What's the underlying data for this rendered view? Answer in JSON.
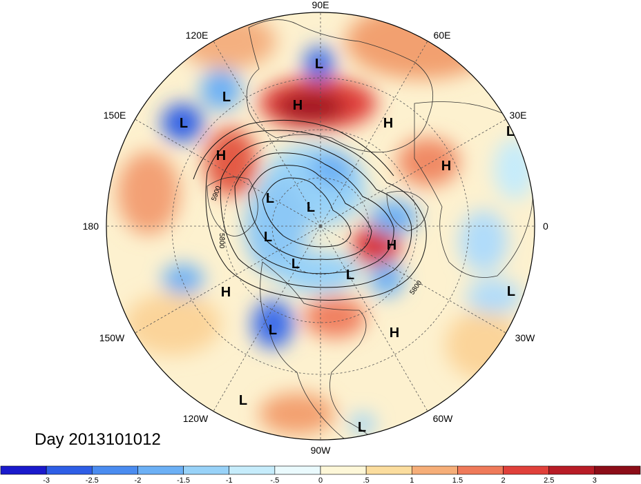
{
  "map": {
    "projection": "north polar stereographic",
    "date_label": "Day 2013101012",
    "longitude_labels": [
      {
        "id": "lon-90e",
        "text": "90E"
      },
      {
        "id": "lon-60e",
        "text": "60E"
      },
      {
        "id": "lon-30e",
        "text": "30E"
      },
      {
        "id": "lon-0",
        "text": "0"
      },
      {
        "id": "lon-30w",
        "text": "30W"
      },
      {
        "id": "lon-60w",
        "text": "60W"
      },
      {
        "id": "lon-90w",
        "text": "90W"
      },
      {
        "id": "lon-120w",
        "text": "120W"
      },
      {
        "id": "lon-150w",
        "text": "150W"
      },
      {
        "id": "lon-180",
        "text": "180"
      },
      {
        "id": "lon-150e",
        "text": "150E"
      },
      {
        "id": "lon-120e",
        "text": "120E"
      }
    ],
    "pressure_centers": [
      {
        "id": "c1",
        "type": "L"
      },
      {
        "id": "c2",
        "type": "L"
      },
      {
        "id": "c3",
        "type": "H"
      },
      {
        "id": "c4",
        "type": "H"
      },
      {
        "id": "c5",
        "type": "L"
      },
      {
        "id": "c6",
        "type": "H"
      },
      {
        "id": "c7",
        "type": "H"
      },
      {
        "id": "c8",
        "type": "L"
      },
      {
        "id": "c9",
        "type": "L"
      },
      {
        "id": "c10",
        "type": "L"
      },
      {
        "id": "c11",
        "type": "H"
      },
      {
        "id": "c12",
        "type": "L"
      },
      {
        "id": "c13",
        "type": "L"
      },
      {
        "id": "c14",
        "type": "H"
      },
      {
        "id": "c15",
        "type": "L"
      },
      {
        "id": "c16",
        "type": "L"
      },
      {
        "id": "c17",
        "type": "H"
      },
      {
        "id": "c18",
        "type": "L"
      },
      {
        "id": "c19",
        "type": "L"
      }
    ],
    "contour_labels": [
      "5900",
      "5800",
      "5800"
    ]
  },
  "colorbar": {
    "ticks": [
      "-3",
      "-2.5",
      "-2",
      "-1.5",
      "-1",
      "-.5",
      "0",
      ".5",
      "1",
      "1.5",
      "2",
      "2.5",
      "3"
    ],
    "colors": [
      "#1a1acc",
      "#2e5ee6",
      "#4a8cf0",
      "#6cb0f5",
      "#98d2f8",
      "#c6ecfb",
      "#eafafd",
      "#fdf7d8",
      "#fbdd9e",
      "#f6ae78",
      "#ef7a5a",
      "#e0403a",
      "#b81c26",
      "#8c0d18"
    ]
  }
}
